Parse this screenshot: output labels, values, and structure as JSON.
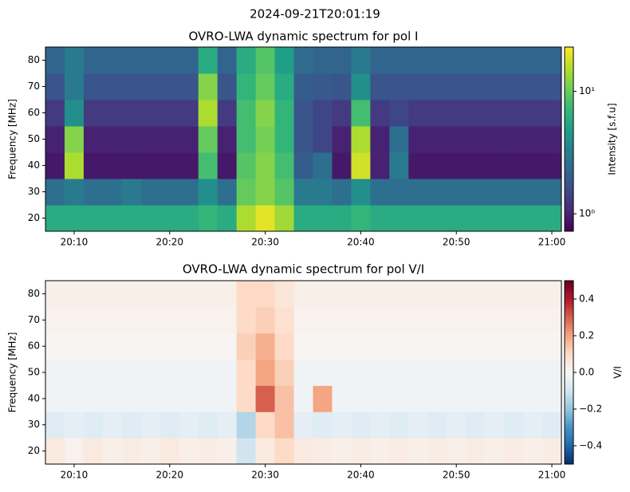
{
  "title": "2024-09-21T20:01:19",
  "chart_data": [
    {
      "type": "heatmap",
      "title": "OVRO-LWA dynamic spectrum for pol I",
      "ylabel": "Frequency [MHz]",
      "colorbar_label": "Intensity [s.f.u]",
      "colormap": "viridis",
      "color_scale": "log",
      "clim": [
        0.72,
        23
      ],
      "cticks": [
        {
          "value": 1,
          "label": "10⁰"
        },
        {
          "value": 10,
          "label": "10¹"
        }
      ],
      "xlim": [
        "20:07",
        "21:01"
      ],
      "xticks": [
        "20:10",
        "20:20",
        "20:30",
        "20:40",
        "20:50",
        "21:00"
      ],
      "ylim": [
        15,
        85
      ],
      "yticks": [
        20,
        30,
        40,
        50,
        60,
        70,
        80
      ],
      "x_edges": [
        "20:07",
        "20:09",
        "20:11",
        "20:13",
        "20:15",
        "20:17",
        "20:19",
        "20:21",
        "20:23",
        "20:25",
        "20:27",
        "20:29",
        "20:31",
        "20:33",
        "20:35",
        "20:37",
        "20:39",
        "20:41",
        "20:43",
        "20:45",
        "20:47",
        "20:49",
        "20:51",
        "20:53",
        "20:55",
        "20:57",
        "20:59",
        "21:01"
      ],
      "y_edges": [
        15,
        25,
        35,
        45,
        55,
        65,
        75,
        85
      ],
      "z": [
        [
          6,
          6,
          6,
          6,
          6,
          6,
          6,
          6,
          7,
          6,
          15,
          20,
          14,
          6,
          6,
          6,
          7,
          6,
          6,
          6,
          6,
          6,
          6,
          6,
          6,
          6,
          6
        ],
        [
          2.5,
          3,
          2.5,
          2.5,
          3,
          2.5,
          2.5,
          2.5,
          4,
          2.5,
          10,
          12,
          9,
          3,
          3,
          2.5,
          4,
          2.5,
          2.5,
          2.5,
          2.5,
          2.5,
          2.5,
          2.5,
          2.5,
          2.5,
          2.5
        ],
        [
          0.9,
          15,
          0.9,
          0.9,
          0.9,
          0.9,
          0.9,
          0.9,
          8,
          0.9,
          9,
          12,
          8,
          2,
          2.5,
          0.9,
          18,
          1,
          3,
          0.9,
          0.9,
          0.9,
          0.9,
          0.9,
          0.9,
          0.9,
          0.9
        ],
        [
          1,
          12,
          1,
          1,
          1,
          1,
          1,
          1,
          10,
          1,
          8,
          11,
          7,
          1.8,
          1.5,
          1,
          15,
          1,
          2.5,
          1,
          1,
          1,
          1,
          1,
          1,
          1,
          1
        ],
        [
          1.3,
          4,
          1.3,
          1.3,
          1.3,
          1.3,
          1.3,
          1.3,
          15,
          1.3,
          8,
          12,
          7,
          1.8,
          1.5,
          1.3,
          8,
          1.3,
          1.5,
          1.3,
          1.3,
          1.3,
          1.3,
          1.3,
          1.3,
          1.3,
          1.3
        ],
        [
          1.8,
          3,
          1.8,
          1.8,
          1.8,
          1.8,
          1.8,
          1.8,
          12,
          1.8,
          7,
          10,
          6,
          2,
          1.9,
          1.8,
          4,
          1.8,
          1.8,
          1.8,
          1.8,
          1.8,
          1.8,
          1.8,
          1.8,
          1.8,
          1.8
        ],
        [
          2.2,
          3,
          2.2,
          2.2,
          2.2,
          2.2,
          2.2,
          2.2,
          6,
          2.2,
          6,
          9,
          5,
          2.4,
          2.2,
          2.2,
          3,
          2.2,
          2.2,
          2.2,
          2.2,
          2.2,
          2.2,
          2.2,
          2.2,
          2.2,
          2.2
        ]
      ]
    },
    {
      "type": "heatmap",
      "title": "OVRO-LWA dynamic spectrum for pol V/I",
      "ylabel": "Frequency [MHz]",
      "colorbar_label": "V/I",
      "colormap": "RdBu_r",
      "color_scale": "linear",
      "clim": [
        -0.5,
        0.5
      ],
      "cticks": [
        {
          "value": -0.4,
          "label": "−0.4"
        },
        {
          "value": -0.2,
          "label": "−0.2"
        },
        {
          "value": 0,
          "label": "0.0"
        },
        0.2,
        0.4
      ],
      "xlim": [
        "20:07",
        "21:01"
      ],
      "xticks": [
        "20:10",
        "20:20",
        "20:30",
        "20:40",
        "20:50",
        "21:00"
      ],
      "ylim": [
        15,
        85
      ],
      "yticks": [
        20,
        30,
        40,
        50,
        60,
        70,
        80
      ],
      "x_edges": [
        "20:07",
        "20:09",
        "20:11",
        "20:13",
        "20:15",
        "20:17",
        "20:19",
        "20:21",
        "20:23",
        "20:25",
        "20:27",
        "20:29",
        "20:31",
        "20:33",
        "20:35",
        "20:37",
        "20:39",
        "20:41",
        "20:43",
        "20:45",
        "20:47",
        "20:49",
        "20:51",
        "20:53",
        "20:55",
        "20:57",
        "20:59",
        "21:01"
      ],
      "y_edges": [
        15,
        25,
        35,
        45,
        55,
        65,
        75,
        85
      ],
      "z": [
        [
          0.05,
          0.02,
          0.05,
          0.03,
          0.04,
          0.03,
          0.05,
          0.03,
          0.04,
          0.03,
          -0.1,
          0.05,
          0.1,
          0.05,
          0.04,
          0.03,
          0.04,
          0.03,
          0.04,
          0.03,
          0.04,
          0.03,
          0.04,
          0.03,
          0.04,
          0.03,
          0.04
        ],
        [
          -0.06,
          -0.05,
          -0.06,
          -0.05,
          -0.06,
          -0.05,
          -0.06,
          -0.05,
          -0.06,
          -0.05,
          -0.15,
          0.1,
          0.15,
          -0.05,
          -0.06,
          -0.05,
          -0.06,
          -0.05,
          -0.06,
          -0.05,
          -0.06,
          -0.05,
          -0.06,
          -0.05,
          -0.06,
          -0.05,
          -0.06
        ],
        [
          -0.02,
          -0.02,
          -0.02,
          -0.02,
          -0.02,
          -0.02,
          -0.02,
          -0.02,
          -0.02,
          -0.02,
          0.1,
          0.3,
          0.15,
          -0.02,
          0.2,
          -0.02,
          -0.02,
          -0.02,
          -0.02,
          -0.02,
          -0.02,
          -0.02,
          -0.02,
          -0.02,
          -0.02,
          -0.02,
          -0.02
        ],
        [
          -0.02,
          -0.02,
          -0.02,
          -0.02,
          -0.02,
          -0.02,
          -0.02,
          -0.02,
          -0.02,
          -0.02,
          0.1,
          0.2,
          0.12,
          -0.02,
          -0.02,
          -0.02,
          -0.02,
          -0.02,
          -0.02,
          -0.02,
          -0.02,
          -0.02,
          -0.02,
          -0.02,
          -0.02,
          -0.02,
          -0.02
        ],
        [
          0.01,
          0.01,
          0.01,
          0.01,
          0.01,
          0.01,
          0.01,
          0.01,
          0.01,
          0.01,
          0.12,
          0.18,
          0.1,
          0.01,
          0.01,
          0.01,
          0.01,
          0.01,
          0.01,
          0.01,
          0.01,
          0.01,
          0.01,
          0.01,
          0.01,
          0.01,
          0.01
        ],
        [
          0.02,
          0.02,
          0.02,
          0.02,
          0.02,
          0.02,
          0.02,
          0.02,
          0.02,
          0.02,
          0.1,
          0.12,
          0.08,
          0.02,
          0.02,
          0.02,
          0.02,
          0.02,
          0.02,
          0.02,
          0.02,
          0.02,
          0.02,
          0.02,
          0.02,
          0.02,
          0.02
        ],
        [
          0.03,
          0.03,
          0.03,
          0.03,
          0.03,
          0.03,
          0.03,
          0.03,
          0.03,
          0.03,
          0.1,
          0.1,
          0.06,
          0.03,
          0.03,
          0.03,
          0.03,
          0.03,
          0.03,
          0.03,
          0.03,
          0.03,
          0.03,
          0.03,
          0.03,
          0.03,
          0.03
        ]
      ]
    }
  ]
}
